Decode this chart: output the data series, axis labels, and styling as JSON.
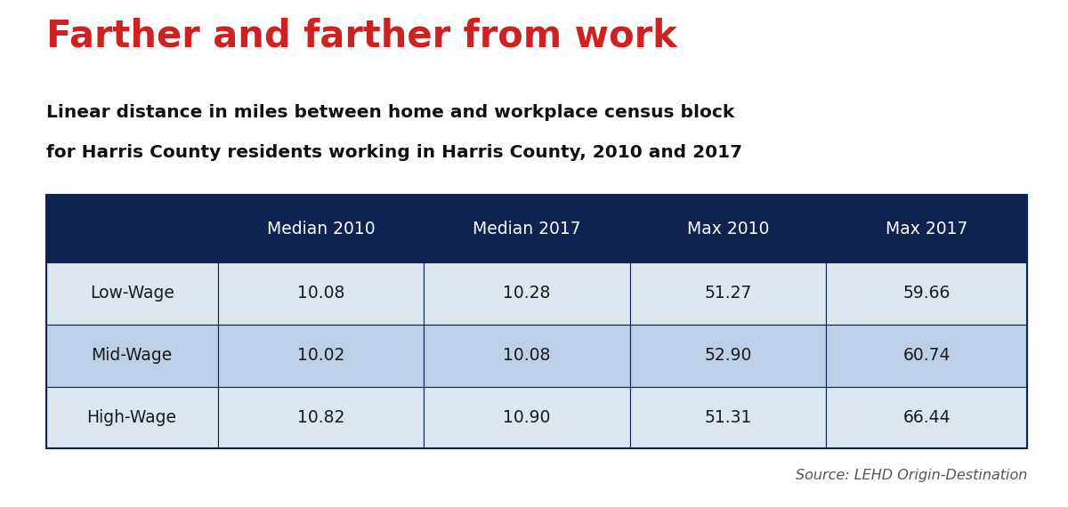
{
  "title": "Farther and farther from work",
  "subtitle_line1": "Linear distance in miles between home and workplace census block",
  "subtitle_line2": "for Harris County residents working in Harris County, 2010 and 2017",
  "source": "Source: LEHD Origin-Destination",
  "title_color": "#cc2222",
  "title_fontsize": 30,
  "subtitle_fontsize": 14.5,
  "col_headers": [
    "",
    "Median 2010",
    "Median 2017",
    "Max 2010",
    "Max 2017"
  ],
  "rows": [
    [
      "Low-Wage",
      "10.08",
      "10.28",
      "51.27",
      "59.66"
    ],
    [
      "Mid-Wage",
      "10.02",
      "10.08",
      "52.90",
      "60.74"
    ],
    [
      "High-Wage",
      "10.82",
      "10.90",
      "51.31",
      "66.44"
    ]
  ],
  "header_bg": "#0d2350",
  "header_text_color": "#ffffff",
  "row_bg_odd": "#dce6f1",
  "row_bg_even": "#bdd0e9",
  "row_text_color": "#1a1a1a",
  "table_border_color": "#0d2350",
  "cell_fontsize": 13.5,
  "header_fontsize": 13.5,
  "source_fontsize": 11.5
}
